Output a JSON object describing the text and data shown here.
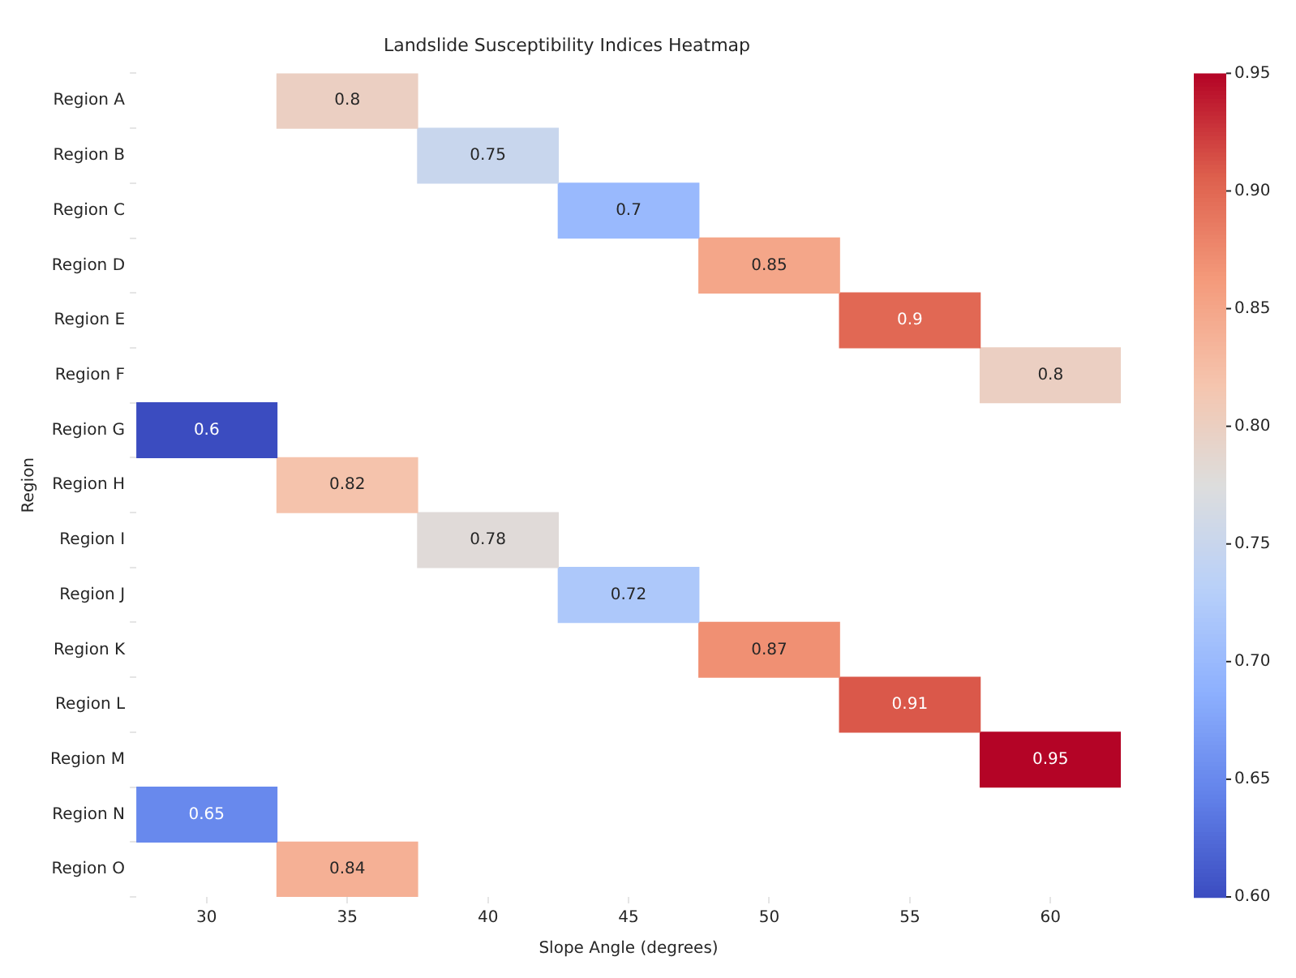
{
  "chart_data": {
    "type": "heatmap",
    "title": "Landslide Susceptibility Indices Heatmap",
    "xlabel": "Slope Angle (degrees)",
    "ylabel": "Region",
    "categories": [
      "30",
      "35",
      "40",
      "45",
      "50",
      "55",
      "60"
    ],
    "y_categories": [
      "Region A",
      "Region B",
      "Region C",
      "Region D",
      "Region E",
      "Region F",
      "Region G",
      "Region H",
      "Region I",
      "Region J",
      "Region K",
      "Region L",
      "Region M",
      "Region N",
      "Region O"
    ],
    "cells": [
      [
        null,
        0.8,
        null,
        null,
        null,
        null,
        null
      ],
      [
        null,
        null,
        0.75,
        null,
        null,
        null,
        null
      ],
      [
        null,
        null,
        null,
        0.7,
        null,
        null,
        null
      ],
      [
        null,
        null,
        null,
        null,
        0.85,
        null,
        null
      ],
      [
        null,
        null,
        null,
        null,
        null,
        0.9,
        null
      ],
      [
        null,
        null,
        null,
        null,
        null,
        null,
        0.8
      ],
      [
        0.6,
        null,
        null,
        null,
        null,
        null,
        null
      ],
      [
        null,
        0.82,
        null,
        null,
        null,
        null,
        null
      ],
      [
        null,
        null,
        0.78,
        null,
        null,
        null,
        null
      ],
      [
        null,
        null,
        null,
        0.72,
        null,
        null,
        null
      ],
      [
        null,
        null,
        null,
        null,
        0.87,
        null,
        null
      ],
      [
        null,
        null,
        null,
        null,
        null,
        0.91,
        null
      ],
      [
        null,
        null,
        null,
        null,
        null,
        null,
        0.95
      ],
      [
        0.65,
        null,
        null,
        null,
        null,
        null,
        null
      ],
      [
        null,
        0.84,
        null,
        null,
        null,
        null,
        null
      ]
    ],
    "clim": [
      0.6,
      0.95
    ],
    "cticks": [
      {
        "value": 0.6,
        "label": "0.60"
      },
      {
        "value": 0.65,
        "label": "0.65"
      },
      {
        "value": 0.7,
        "label": "0.70"
      },
      {
        "value": 0.75,
        "label": "0.75"
      },
      {
        "value": 0.8,
        "label": "0.80"
      },
      {
        "value": 0.85,
        "label": "0.85"
      },
      {
        "value": 0.9,
        "label": "0.90"
      },
      {
        "value": 0.95,
        "label": "0.95"
      }
    ],
    "data_labels": true
  }
}
